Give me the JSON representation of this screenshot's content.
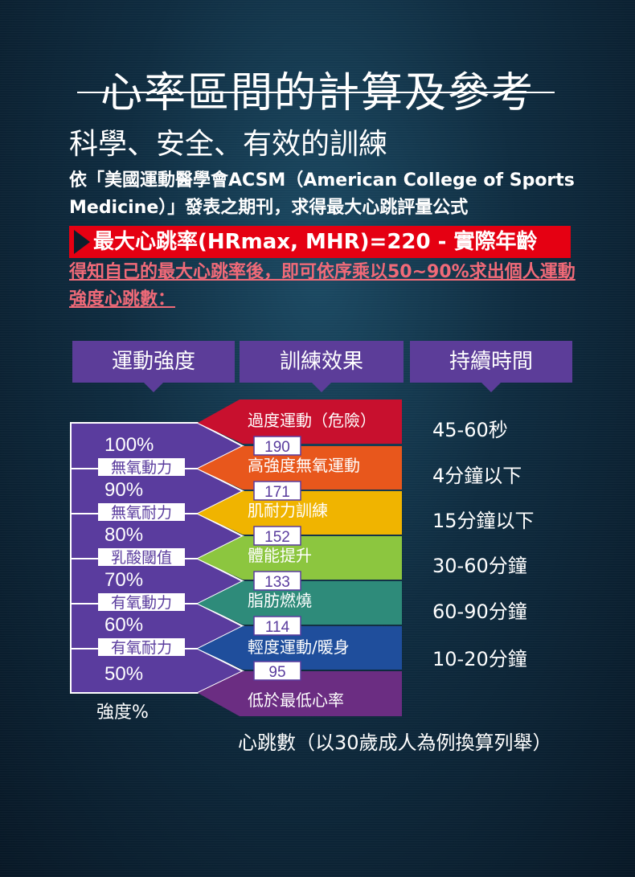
{
  "title": "心率區間的計算及參考",
  "subtitle": "科學、安全、有效的訓練",
  "description": "依「美國運動醫學會ACSM（American College of Sports Medicine）」發表之期刊，求得最大心跳評量公式",
  "formula": "最大心跳率(HRmax, MHR)=220 - 實際年齡",
  "note": "得知自己的最大心跳率後，即可依序乘以50~90%求出個人運動強度心跳數：",
  "headers": {
    "intensity": "運動強度",
    "effect": "訓練效果",
    "duration": "持續時間"
  },
  "percents": [
    "100%",
    "90%",
    "80%",
    "70%",
    "60%",
    "50%"
  ],
  "zone_labels": [
    "無氧動力",
    "無氧耐力",
    "乳酸閾值",
    "有氧動力",
    "有氧耐力"
  ],
  "heart_rates": [
    "190",
    "171",
    "152",
    "133",
    "114",
    "95"
  ],
  "effects": [
    {
      "label": "過度運動（危險）",
      "color": "#c8102e"
    },
    {
      "label": "高強度無氧運動",
      "color": "#e8571c"
    },
    {
      "label": "肌耐力訓練",
      "color": "#f0b400"
    },
    {
      "label": "體能提升",
      "color": "#8cc63f"
    },
    {
      "label": "脂肪燃燒",
      "color": "#2e8b7a"
    },
    {
      "label": "輕度運動/暖身",
      "color": "#1f4e9c"
    },
    {
      "label": "低於最低心率",
      "color": "#6b2d82"
    }
  ],
  "durations": [
    "45-60秒",
    "4分鐘以下",
    "15分鐘以下",
    "30-60分鐘",
    "60-90分鐘",
    "10-20分鐘"
  ],
  "intensity_axis_label": "強度%",
  "footer_note": "心跳數（以30歲成人為例換算列舉）",
  "colors": {
    "accent_red": "#e50012",
    "header_purple": "#5c3d99",
    "intensity_purple": "#5a3c9e",
    "note_pink": "#f06a78"
  }
}
